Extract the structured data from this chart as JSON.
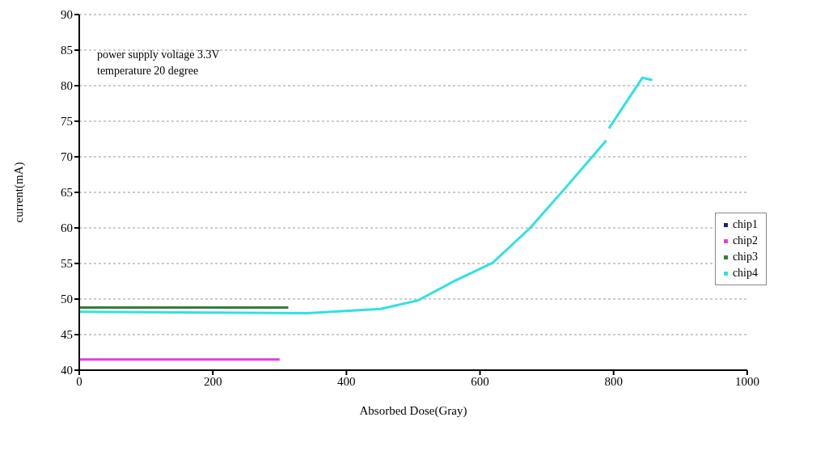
{
  "chart_data": {
    "type": "line",
    "xlabel": "Absorbed Dose(Gray)",
    "ylabel": "current(mA)",
    "annotations": [
      "power supply voltage 3.3V",
      "temperature 20 degree"
    ],
    "series": [
      {
        "name": "chip1",
        "color": "#1f1f7a"
      },
      {
        "name": "chip2",
        "color": "#e040e0",
        "x": [
          0,
          300
        ],
        "values": [
          41.5,
          41.5
        ]
      },
      {
        "name": "chip3",
        "color": "#3a7a3a",
        "x": [
          0,
          313
        ],
        "values": [
          48.8,
          48.8
        ]
      },
      {
        "name": "chip4",
        "color": "#33e0e0",
        "x": [
          0,
          200,
          341,
          451,
          507,
          563,
          619,
          675,
          723,
          768,
          789,
          791,
          793,
          843,
          858
        ],
        "values": [
          48.2,
          48.1,
          48.0,
          48.6,
          49.8,
          52.6,
          55.1,
          60.0,
          65.1,
          70.0,
          72.3,
          null,
          74.0,
          81.1,
          80.8
        ]
      }
    ],
    "xlim": [
      0,
      1000
    ],
    "xticks": [
      0,
      200,
      400,
      600,
      800,
      1000
    ],
    "ylim": [
      40,
      90
    ],
    "yticks": [
      40,
      45,
      50,
      55,
      60,
      65,
      70,
      75,
      80,
      85,
      90
    ],
    "grid": "y",
    "legend": "right",
    "marker": "none",
    "line_style": "solid"
  }
}
